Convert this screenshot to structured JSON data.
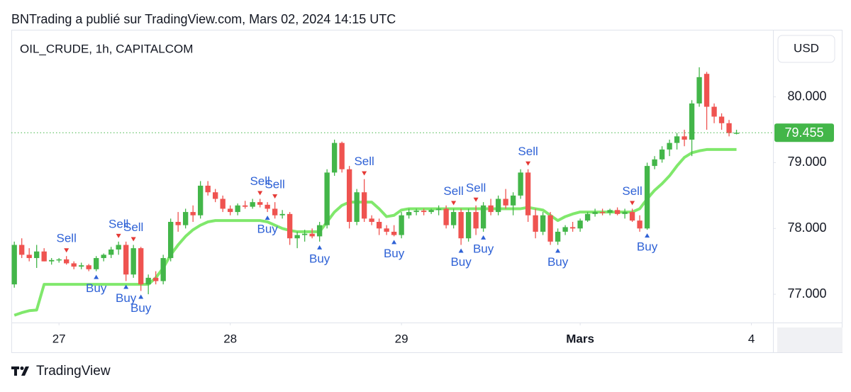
{
  "header": {
    "text": "BNTrading a publié sur TradingView.com, Mars 02, 2024 14:15 UTC"
  },
  "footer": {
    "brand": "TradingView"
  },
  "chart_data": {
    "type": "candlestick",
    "symbol": "OIL_CRUDE, 1h, CAPITALCOM",
    "currency": "USD",
    "up_color": "#43b649",
    "down_color": "#ef5350",
    "ylim": [
      76.57,
      81.02
    ],
    "yticks": [
      {
        "value": 77,
        "label": "77.000"
      },
      {
        "value": 78,
        "label": "78.000"
      },
      {
        "value": 79,
        "label": "79.000"
      },
      {
        "value": 80,
        "label": "80.000"
      }
    ],
    "xlim": [
      -0.4,
      101.9
    ],
    "xticks": [
      {
        "value": 6,
        "label": "27"
      },
      {
        "value": 29,
        "label": "28"
      },
      {
        "value": 52,
        "label": "29"
      },
      {
        "value": 76,
        "label": "Mars"
      },
      {
        "value": 99,
        "label": "4"
      }
    ],
    "last_price": 79.455,
    "candles": [
      [
        77.15,
        77.8,
        77.1,
        77.75
      ],
      [
        77.75,
        77.85,
        77.55,
        77.6
      ],
      [
        77.6,
        77.7,
        77.5,
        77.55
      ],
      [
        77.55,
        77.75,
        77.4,
        77.65
      ],
      [
        77.65,
        77.7,
        77.5,
        77.5
      ],
      [
        77.5,
        77.55,
        77.45,
        77.52
      ],
      [
        77.52,
        77.55,
        77.48,
        77.53
      ],
      [
        77.53,
        77.58,
        77.45,
        77.47
      ],
      [
        77.47,
        77.5,
        77.38,
        77.42
      ],
      [
        77.42,
        77.48,
        77.38,
        77.44
      ],
      [
        77.44,
        77.46,
        77.35,
        77.38
      ],
      [
        77.38,
        77.58,
        77.35,
        77.55
      ],
      [
        77.55,
        77.62,
        77.5,
        77.6
      ],
      [
        77.6,
        77.72,
        77.55,
        77.68
      ],
      [
        77.68,
        77.8,
        77.6,
        77.75
      ],
      [
        77.75,
        77.8,
        77.2,
        77.3
      ],
      [
        77.3,
        77.75,
        77.25,
        77.7
      ],
      [
        77.7,
        77.72,
        77.05,
        77.15
      ],
      [
        77.15,
        77.3,
        77.0,
        77.25
      ],
      [
        77.25,
        77.35,
        77.15,
        77.2
      ],
      [
        77.2,
        77.6,
        77.15,
        77.55
      ],
      [
        77.55,
        78.15,
        77.5,
        78.1
      ],
      [
        78.1,
        78.25,
        77.95,
        78.05
      ],
      [
        78.05,
        78.3,
        78.0,
        78.25
      ],
      [
        78.25,
        78.35,
        78.1,
        78.2
      ],
      [
        78.2,
        78.72,
        78.15,
        78.65
      ],
      [
        78.65,
        78.72,
        78.5,
        78.55
      ],
      [
        78.55,
        78.6,
        78.4,
        78.45
      ],
      [
        78.45,
        78.5,
        78.25,
        78.3
      ],
      [
        78.3,
        78.35,
        78.2,
        78.25
      ],
      [
        78.25,
        78.38,
        78.2,
        78.35
      ],
      [
        78.35,
        78.42,
        78.3,
        78.33
      ],
      [
        78.33,
        78.45,
        78.3,
        78.4
      ],
      [
        78.4,
        78.45,
        78.32,
        78.36
      ],
      [
        78.36,
        78.4,
        78.25,
        78.3
      ],
      [
        78.3,
        78.4,
        78.15,
        78.2
      ],
      [
        78.2,
        78.28,
        78.15,
        78.22
      ],
      [
        78.22,
        78.25,
        77.75,
        77.85
      ],
      [
        77.85,
        77.95,
        77.7,
        77.9
      ],
      [
        77.9,
        77.98,
        77.8,
        77.92
      ],
      [
        77.92,
        78.0,
        77.85,
        77.88
      ],
      [
        77.88,
        78.1,
        77.8,
        78.05
      ],
      [
        78.05,
        78.9,
        78.0,
        78.85
      ],
      [
        78.85,
        79.35,
        78.8,
        79.3
      ],
      [
        79.3,
        79.32,
        78.85,
        78.9
      ],
      [
        78.9,
        78.95,
        78.0,
        78.1
      ],
      [
        78.1,
        78.6,
        78.05,
        78.55
      ],
      [
        78.55,
        78.75,
        78.1,
        78.15
      ],
      [
        78.15,
        78.2,
        78.05,
        78.1
      ],
      [
        78.1,
        78.15,
        77.9,
        78.0
      ],
      [
        78.0,
        78.05,
        77.9,
        77.95
      ],
      [
        77.95,
        78.05,
        77.88,
        77.9
      ],
      [
        77.9,
        78.25,
        77.85,
        78.2
      ],
      [
        78.2,
        78.3,
        78.15,
        78.25
      ],
      [
        78.25,
        78.3,
        78.2,
        78.27
      ],
      [
        78.27,
        78.3,
        78.2,
        78.25
      ],
      [
        78.25,
        78.3,
        78.22,
        78.28
      ],
      [
        78.28,
        78.35,
        78.2,
        78.3
      ],
      [
        78.3,
        78.35,
        78.0,
        78.05
      ],
      [
        78.05,
        78.3,
        78.0,
        78.25
      ],
      [
        78.25,
        78.3,
        77.75,
        77.85
      ],
      [
        77.85,
        78.3,
        77.8,
        78.25
      ],
      [
        78.25,
        78.35,
        77.9,
        78.0
      ],
      [
        78.0,
        78.4,
        77.95,
        78.35
      ],
      [
        78.35,
        78.45,
        78.2,
        78.25
      ],
      [
        78.25,
        78.5,
        78.2,
        78.45
      ],
      [
        78.45,
        78.6,
        78.3,
        78.35
      ],
      [
        78.35,
        78.55,
        78.2,
        78.5
      ],
      [
        78.5,
        78.9,
        78.45,
        78.85
      ],
      [
        78.85,
        78.9,
        78.1,
        78.2
      ],
      [
        78.2,
        78.3,
        77.85,
        77.95
      ],
      [
        77.95,
        78.25,
        77.9,
        78.2
      ],
      [
        78.2,
        78.25,
        77.75,
        77.8
      ],
      [
        77.8,
        78.0,
        77.75,
        77.95
      ],
      [
        77.95,
        78.05,
        77.9,
        78.02
      ],
      [
        78.02,
        78.1,
        77.95,
        78.0
      ],
      [
        78.0,
        78.15,
        77.95,
        78.12
      ],
      [
        78.12,
        78.25,
        78.1,
        78.22
      ],
      [
        78.22,
        78.3,
        78.18,
        78.25
      ],
      [
        78.25,
        78.3,
        78.2,
        78.24
      ],
      [
        78.24,
        78.3,
        78.2,
        78.28
      ],
      [
        78.28,
        78.32,
        78.2,
        78.22
      ],
      [
        78.22,
        78.3,
        78.15,
        78.25
      ],
      [
        78.25,
        78.3,
        78.1,
        78.12
      ],
      [
        78.12,
        78.2,
        77.95,
        78.0
      ],
      [
        78.0,
        79.0,
        77.98,
        78.95
      ],
      [
        78.95,
        79.1,
        78.9,
        79.05
      ],
      [
        79.05,
        79.25,
        79.0,
        79.2
      ],
      [
        79.2,
        79.35,
        79.1,
        79.3
      ],
      [
        79.3,
        79.45,
        79.2,
        79.4
      ],
      [
        79.4,
        79.5,
        79.25,
        79.35
      ],
      [
        79.35,
        79.95,
        79.1,
        79.9
      ],
      [
        79.9,
        80.45,
        79.85,
        80.3
      ],
      [
        80.35,
        80.38,
        79.5,
        79.85
      ],
      [
        79.85,
        79.9,
        79.6,
        79.7
      ],
      [
        79.7,
        79.75,
        79.5,
        79.6
      ],
      [
        79.6,
        79.65,
        79.4,
        79.45
      ],
      [
        79.45,
        79.5,
        79.43,
        79.455
      ]
    ],
    "trail": {
      "color": "#80e86c",
      "values": [
        76.68,
        76.72,
        76.75,
        76.76,
        77.15,
        77.15,
        77.15,
        77.15,
        77.15,
        77.15,
        77.15,
        77.15,
        77.15,
        77.15,
        77.15,
        77.15,
        77.15,
        77.15,
        77.15,
        77.25,
        77.4,
        77.6,
        77.75,
        77.88,
        77.98,
        78.05,
        78.1,
        78.12,
        78.12,
        78.12,
        78.12,
        78.12,
        78.12,
        78.12,
        78.1,
        78.05,
        78.0,
        77.97,
        77.95,
        77.95,
        77.95,
        77.95,
        78.1,
        78.25,
        78.35,
        78.4,
        78.4,
        78.4,
        78.4,
        78.3,
        78.18,
        78.2,
        78.28,
        78.3,
        78.3,
        78.3,
        78.3,
        78.3,
        78.3,
        78.3,
        78.3,
        78.3,
        78.3,
        78.3,
        78.3,
        78.3,
        78.3,
        78.3,
        78.3,
        78.32,
        78.3,
        78.28,
        78.2,
        78.12,
        78.18,
        78.22,
        78.25,
        78.25,
        78.25,
        78.25,
        78.25,
        78.25,
        78.25,
        78.25,
        78.3,
        78.45,
        78.58,
        78.68,
        78.8,
        78.95,
        79.08,
        79.15,
        79.18,
        79.2,
        79.2,
        79.2,
        79.2,
        79.2
      ]
    },
    "signals": [
      {
        "index": 7,
        "label": "Sell"
      },
      {
        "index": 11,
        "label": "Buy"
      },
      {
        "index": 14,
        "label": "Sell"
      },
      {
        "index": 15,
        "label": "Buy"
      },
      {
        "index": 16,
        "label": "Sell"
      },
      {
        "index": 17,
        "label": "Buy"
      },
      {
        "index": 33,
        "label": "Sell"
      },
      {
        "index": 34,
        "label": "Buy"
      },
      {
        "index": 35,
        "label": "Sell"
      },
      {
        "index": 41,
        "label": "Buy"
      },
      {
        "index": 47,
        "label": "Sell"
      },
      {
        "index": 51,
        "label": "Buy"
      },
      {
        "index": 59,
        "label": "Sell"
      },
      {
        "index": 60,
        "label": "Buy"
      },
      {
        "index": 62,
        "label": "Sell"
      },
      {
        "index": 63,
        "label": "Buy"
      },
      {
        "index": 69,
        "label": "Sell"
      },
      {
        "index": 73,
        "label": "Buy"
      },
      {
        "index": 83,
        "label": "Sell"
      },
      {
        "index": 85,
        "label": "Buy"
      }
    ],
    "signal_text_color": "#2f62d6",
    "buy_color": "#2f62d6",
    "sell_color": "#e53935"
  }
}
